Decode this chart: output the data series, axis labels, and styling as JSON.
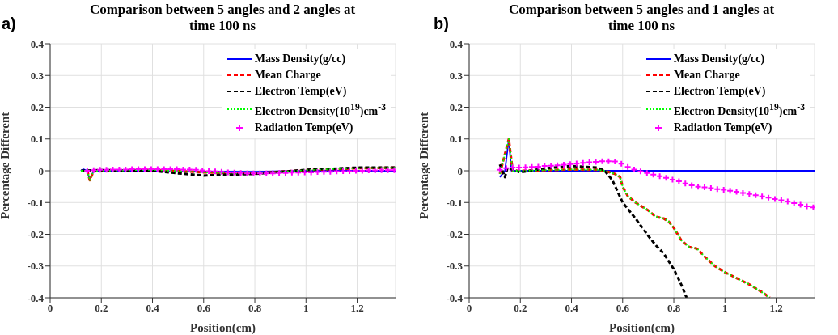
{
  "chart_data": [
    {
      "type": "line",
      "title": "Comparison between 5 angles and 2 angles at time 100 ns",
      "annotations": [
        "a)"
      ],
      "xlabel": "Position(cm)",
      "ylabel": "Percentage Different",
      "xlim": [
        0,
        1.35
      ],
      "xticks": [
        0,
        0.2,
        0.4,
        0.6,
        0.8,
        1,
        1.2
      ],
      "ylim": [
        -0.4,
        0.4
      ],
      "yticks": [
        -0.4,
        -0.3,
        -0.2,
        -0.1,
        0,
        0.1,
        0.2,
        0.3,
        0.4
      ],
      "grid": true,
      "legend": "top right",
      "series": [
        {
          "name": "Mass Density(g/cc)",
          "color": "#0000ff",
          "line_style": "solid",
          "x": [
            0.12,
            0.13,
            0.145,
            0.155,
            0.17,
            0.2,
            0.6,
            0.8,
            1.0,
            1.35
          ],
          "values": [
            0,
            0.005,
            0,
            -0.03,
            0,
            0,
            -0.002,
            -0.003,
            0,
            0
          ]
        },
        {
          "name": "Mean Charge",
          "color": "#ff0000",
          "line_style": "dashed",
          "x": [
            0.145,
            0.155,
            0.17,
            0.2,
            0.4,
            0.6,
            0.8,
            1.0,
            1.2,
            1.35
          ],
          "values": [
            0,
            -0.03,
            0,
            0,
            0.003,
            -0.005,
            -0.008,
            0.002,
            0.008,
            0.01
          ]
        },
        {
          "name": "Electron Temp(eV)",
          "color": "#000000",
          "line_style": "dashed",
          "x": [
            0.12,
            0.2,
            0.4,
            0.5,
            0.6,
            0.7,
            0.8,
            1.0,
            1.2,
            1.35
          ],
          "values": [
            0,
            0.002,
            0,
            -0.008,
            -0.015,
            -0.012,
            -0.01,
            0.003,
            0.01,
            0.01
          ]
        },
        {
          "name": "Electron Density(10$^{19}$)cm$^{-3}$",
          "color": "#00ff00",
          "line_style": "dotted",
          "x": [
            0.12,
            0.145,
            0.155,
            0.17,
            0.2,
            0.4,
            0.6,
            0.8,
            1.0,
            1.2,
            1.35
          ],
          "values": [
            0,
            0,
            -0.03,
            0,
            0,
            0.003,
            -0.005,
            -0.008,
            0.002,
            0.008,
            0.01
          ]
        },
        {
          "name": "Radiation Temp(eV)",
          "color": "#ff00ff",
          "type": "scatter",
          "marker": "cross",
          "x": [
            0.145,
            0.17,
            0.195,
            0.22,
            0.245,
            0.27,
            0.295,
            0.32,
            0.345,
            0.37,
            0.395,
            0.42,
            0.445,
            0.47,
            0.495,
            0.52,
            0.545,
            0.57,
            0.595,
            0.62,
            0.645,
            0.67,
            0.695,
            0.72,
            0.745,
            0.77,
            0.795,
            0.82,
            0.845,
            0.87,
            0.895,
            0.92,
            0.945,
            0.97,
            0.995,
            1.02,
            1.045,
            1.07,
            1.095,
            1.12,
            1.145,
            1.17,
            1.195,
            1.22,
            1.245,
            1.27,
            1.295,
            1.32,
            1.345
          ],
          "values": [
            0,
            0.002,
            0.003,
            0.003,
            0.004,
            0.004,
            0.004,
            0.005,
            0.005,
            0.005,
            0.005,
            0.005,
            0.005,
            0.005,
            0.005,
            0.004,
            0.004,
            0.003,
            0.001,
            -0.001,
            -0.002,
            -0.003,
            -0.005,
            -0.006,
            -0.007,
            -0.008,
            -0.008,
            -0.008,
            -0.008,
            -0.008,
            -0.007,
            -0.007,
            -0.006,
            -0.006,
            -0.005,
            -0.005,
            -0.004,
            -0.003,
            -0.003,
            -0.002,
            -0.001,
            -0.001,
            0,
            0,
            0.001,
            0.001,
            0.002,
            0.002,
            0.002
          ]
        }
      ]
    },
    {
      "type": "line",
      "title": "Comparison between 5 angles and 1 angles at time 100 ns",
      "annotations": [
        "b)"
      ],
      "xlabel": "Position(cm)",
      "ylabel": "Percentage Different",
      "xlim": [
        0,
        1.35
      ],
      "xticks": [
        0,
        0.2,
        0.4,
        0.6,
        0.8,
        1,
        1.2
      ],
      "ylim": [
        -0.4,
        0.4
      ],
      "yticks": [
        -0.4,
        -0.3,
        -0.2,
        -0.1,
        0,
        0.1,
        0.2,
        0.3,
        0.4
      ],
      "grid": true,
      "legend": "top right",
      "series": [
        {
          "name": "Mass Density(g/cc)",
          "color": "#0000ff",
          "line_style": "solid",
          "x": [
            0.12,
            0.14,
            0.155,
            0.165,
            0.2,
            1.35
          ],
          "values": [
            -0.02,
            0,
            0.1,
            0,
            0,
            0
          ]
        },
        {
          "name": "Mean Charge",
          "color": "#ff0000",
          "line_style": "dashed",
          "x": [
            0.12,
            0.155,
            0.17,
            0.2,
            0.4,
            0.5,
            0.53,
            0.57,
            0.59,
            0.6,
            0.62,
            0.65,
            0.7,
            0.73,
            0.76,
            0.78,
            0.8,
            0.83,
            0.86,
            0.89,
            0.92,
            0.96,
            1.0,
            1.05,
            1.1,
            1.15,
            1.175
          ],
          "values": [
            -0.01,
            0.1,
            0,
            0,
            0.004,
            0.003,
            0,
            -0.01,
            -0.02,
            -0.05,
            -0.08,
            -0.1,
            -0.125,
            -0.145,
            -0.15,
            -0.16,
            -0.18,
            -0.22,
            -0.24,
            -0.245,
            -0.27,
            -0.3,
            -0.32,
            -0.34,
            -0.36,
            -0.385,
            -0.4
          ]
        },
        {
          "name": "Electron Temp(eV)",
          "color": "#000000",
          "line_style": "dashed",
          "x": [
            0.12,
            0.14,
            0.15,
            0.2,
            0.3,
            0.4,
            0.5,
            0.53,
            0.56,
            0.6,
            0.65,
            0.7,
            0.73,
            0.76,
            0.8,
            0.83,
            0.85
          ],
          "values": [
            0.02,
            -0.02,
            0.01,
            -0.005,
            0.008,
            0.015,
            0.01,
            0,
            -0.03,
            -0.1,
            -0.15,
            -0.205,
            -0.235,
            -0.26,
            -0.31,
            -0.36,
            -0.4
          ]
        },
        {
          "name": "Electron Density(10$^{19}$)cm$^{-3}$",
          "color": "#00ff00",
          "line_style": "dotted",
          "x": [
            0.12,
            0.155,
            0.17,
            0.2,
            0.4,
            0.5,
            0.53,
            0.57,
            0.59,
            0.6,
            0.62,
            0.65,
            0.7,
            0.73,
            0.76,
            0.78,
            0.8,
            0.83,
            0.86,
            0.89,
            0.92,
            0.96,
            1.0,
            1.05,
            1.1,
            1.15,
            1.175
          ],
          "values": [
            -0.01,
            0.1,
            0,
            0,
            0.004,
            0.003,
            0,
            -0.01,
            -0.02,
            -0.05,
            -0.08,
            -0.1,
            -0.125,
            -0.145,
            -0.15,
            -0.16,
            -0.18,
            -0.22,
            -0.24,
            -0.245,
            -0.27,
            -0.3,
            -0.32,
            -0.34,
            -0.36,
            -0.385,
            -0.4
          ]
        },
        {
          "name": "Radiation Temp(eV)",
          "color": "#ff00ff",
          "type": "scatter",
          "marker": "cross",
          "x": [
            0.12,
            0.145,
            0.17,
            0.195,
            0.22,
            0.245,
            0.27,
            0.295,
            0.32,
            0.345,
            0.37,
            0.395,
            0.42,
            0.445,
            0.47,
            0.495,
            0.52,
            0.545,
            0.57,
            0.595,
            0.62,
            0.645,
            0.67,
            0.695,
            0.72,
            0.745,
            0.77,
            0.795,
            0.82,
            0.845,
            0.87,
            0.895,
            0.92,
            0.945,
            0.97,
            0.995,
            1.02,
            1.045,
            1.07,
            1.095,
            1.12,
            1.145,
            1.17,
            1.195,
            1.22,
            1.245,
            1.27,
            1.295,
            1.32,
            1.345
          ],
          "values": [
            0.003,
            0.008,
            0.01,
            0.01,
            0.011,
            0.012,
            0.013,
            0.015,
            0.016,
            0.017,
            0.019,
            0.021,
            0.023,
            0.025,
            0.027,
            0.028,
            0.03,
            0.03,
            0.029,
            0.022,
            0.012,
            0.004,
            -0.002,
            -0.007,
            -0.012,
            -0.017,
            -0.022,
            -0.028,
            -0.033,
            -0.04,
            -0.046,
            -0.05,
            -0.052,
            -0.055,
            -0.058,
            -0.06,
            -0.063,
            -0.066,
            -0.07,
            -0.073,
            -0.077,
            -0.081,
            -0.085,
            -0.089,
            -0.093,
            -0.097,
            -0.102,
            -0.107,
            -0.112,
            -0.115
          ]
        }
      ]
    }
  ]
}
